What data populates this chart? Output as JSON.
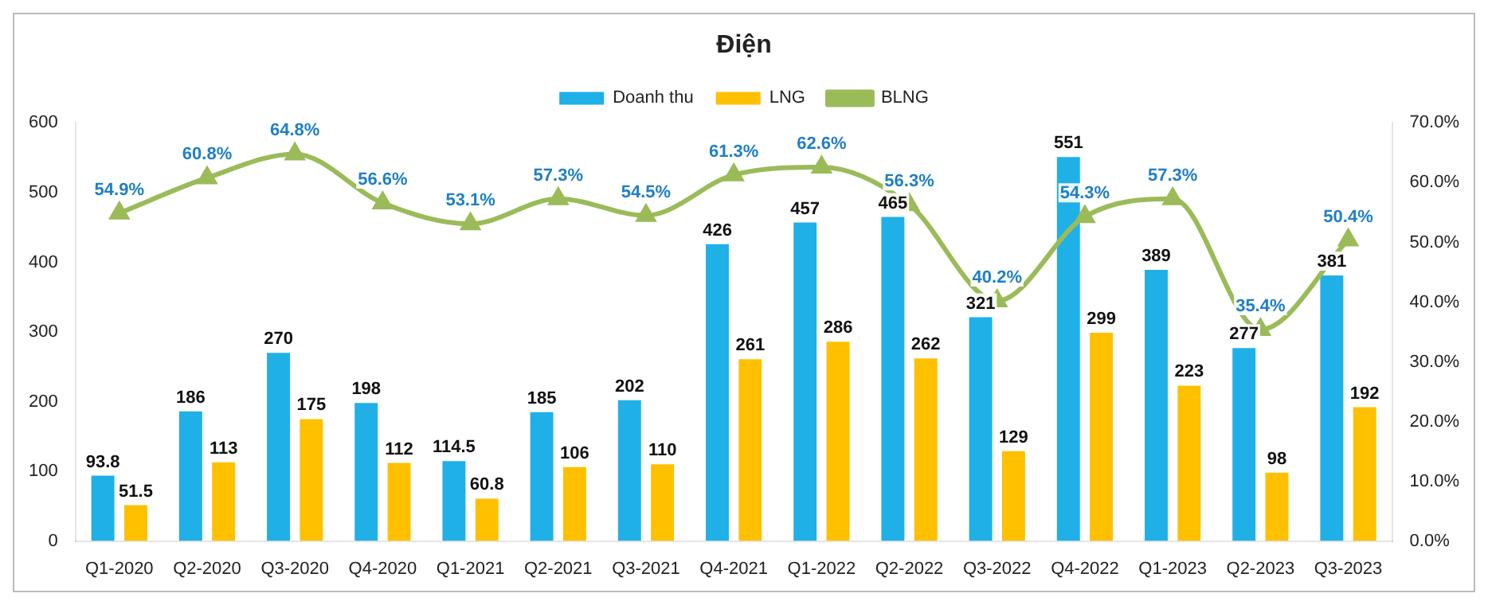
{
  "chart_data": {
    "type": "bar",
    "title": "Điện",
    "categories": [
      "Q1-2020",
      "Q2-2020",
      "Q3-2020",
      "Q4-2020",
      "Q1-2021",
      "Q2-2021",
      "Q3-2021",
      "Q4-2021",
      "Q1-2022",
      "Q2-2022",
      "Q3-2022",
      "Q4-2022",
      "Q1-2023",
      "Q2-2023",
      "Q3-2023"
    ],
    "series": [
      {
        "name": "Doanh thu",
        "color": "#1fb0e8",
        "values": [
          93.8,
          186,
          270,
          198,
          114.5,
          185,
          202,
          426,
          457,
          465,
          321,
          551,
          389,
          277,
          381
        ]
      },
      {
        "name": "LNG",
        "color": "#ffc000",
        "values": [
          51.5,
          113,
          175,
          112,
          60.8,
          106,
          110,
          261,
          286,
          262,
          129,
          299,
          223,
          98,
          192
        ]
      },
      {
        "name": "BLNG",
        "type": "line",
        "axis": "y2",
        "color": "#9bbb59",
        "marker": "triangle",
        "values": [
          54.9,
          60.8,
          64.8,
          56.6,
          53.1,
          57.3,
          54.5,
          61.3,
          62.6,
          56.3,
          40.2,
          54.3,
          57.3,
          35.4,
          50.4
        ],
        "value_labels": [
          "54.9%",
          "60.8%",
          "64.8%",
          "56.6%",
          "53.1%",
          "57.3%",
          "54.5%",
          "61.3%",
          "62.6%",
          "56.3%",
          "40.2%",
          "54.3%",
          "57.3%",
          "35.4%",
          "50.4%"
        ]
      }
    ],
    "ylim": [
      0,
      600
    ],
    "yticks": [
      0,
      100,
      200,
      300,
      400,
      500,
      600
    ],
    "y2lim": [
      0,
      70
    ],
    "y2ticks": [
      {
        "value": 0,
        "label": "0.0%"
      },
      {
        "value": 10,
        "label": "10.0%"
      },
      {
        "value": 20,
        "label": "20.0%"
      },
      {
        "value": 30,
        "label": "30.0%"
      },
      {
        "value": 40,
        "label": "40.0%"
      },
      {
        "value": 50,
        "label": "50.0%"
      },
      {
        "value": 60,
        "label": "60.0%"
      },
      {
        "value": 70,
        "label": "70.0%"
      }
    ],
    "data_labels": true,
    "legend": "top"
  }
}
